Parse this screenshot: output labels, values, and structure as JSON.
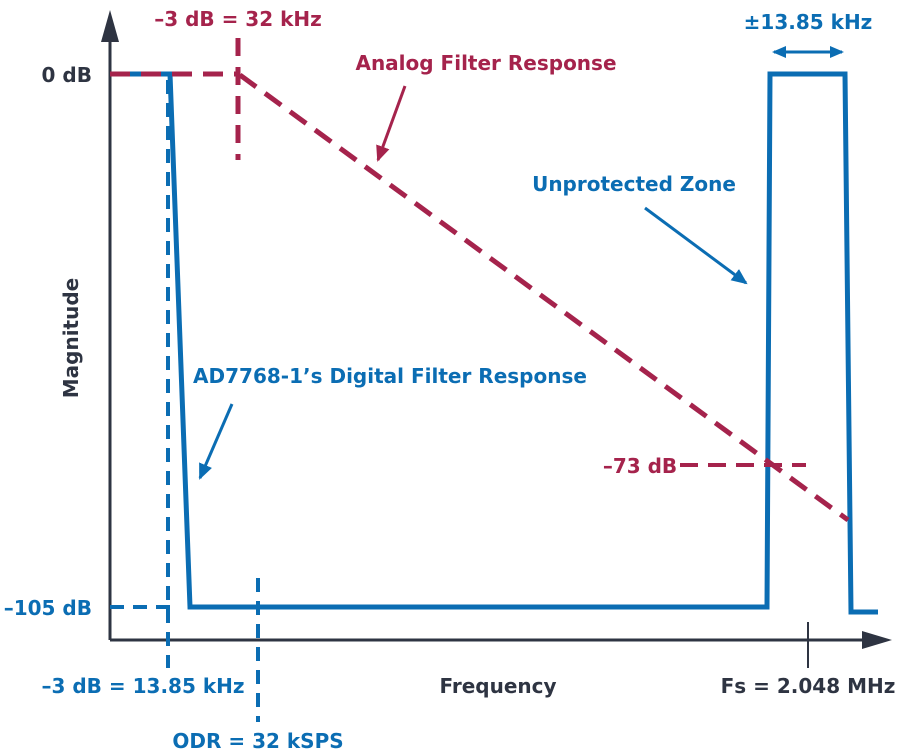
{
  "colors": {
    "digital": "#0b6db3",
    "analog": "#a5234c",
    "axis": "#2e3442"
  },
  "axes": {
    "ylabel": "Magnitude",
    "xlabel": "Frequency",
    "y_ticks": [
      "0 dB",
      "–105 dB"
    ],
    "x_tick": "Fs = 2.048 MHz"
  },
  "labels": {
    "analog_cutoff": "–3 dB = 32 kHz",
    "analog_response": "Analog Filter Response",
    "unprotected": "Unprotected Zone",
    "bandwidth": "±13.85 kHz",
    "digital_response": "AD7768-1’s Digital Filter Response",
    "analog_attenuation": "–73 dB",
    "digital_cutoff": "–3 dB = 13.85 kHz",
    "odr": "ODR = 32 kSPS"
  }
}
